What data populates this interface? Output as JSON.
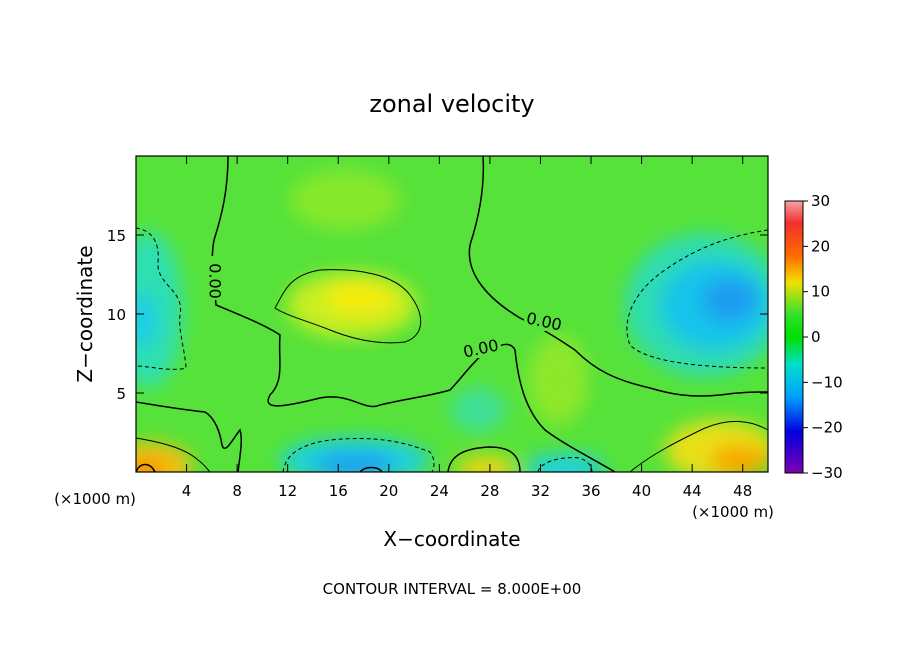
{
  "chart_data": {
    "type": "heatmap",
    "title": "zonal velocity",
    "xlabel": "X−coordinate",
    "ylabel": "Z−coordinate",
    "x_unit_left": "(×1000 m)",
    "x_unit_right": "(×1000 m)",
    "footer": "CONTOUR INTERVAL = 8.000E+00",
    "xlim": [
      0,
      50
    ],
    "ylim": [
      0,
      20
    ],
    "x_ticks": [
      4,
      8,
      12,
      16,
      20,
      24,
      28,
      32,
      36,
      40,
      44,
      48
    ],
    "y_ticks": [
      5,
      10,
      15
    ],
    "colorbar": {
      "range": [
        -30,
        30
      ],
      "ticks": [
        30,
        20,
        10,
        0,
        -10,
        -20,
        -30
      ],
      "tick_labels": [
        "30",
        "20",
        "10",
        "0",
        "−10",
        "−20",
        "−30"
      ]
    },
    "contour_labels": [
      "0.00",
      "0.00",
      "0.00"
    ],
    "features": [
      {
        "x": 18,
        "z": 10.8,
        "value": 11
      },
      {
        "x": 45,
        "z": 10.5,
        "value": -9
      },
      {
        "x": 1.5,
        "z": 10,
        "value": -7
      },
      {
        "x": 18,
        "z": 0.6,
        "value": -12
      },
      {
        "x": 33,
        "z": 0.5,
        "value": -9
      },
      {
        "x": 28,
        "z": 0.5,
        "value": 12
      },
      {
        "x": 1.5,
        "z": 0.8,
        "value": 16
      },
      {
        "x": 46,
        "z": 1.5,
        "value": 14
      },
      {
        "x": 31.5,
        "z": 6,
        "value": 7
      },
      {
        "x": 17,
        "z": 17,
        "value": 6
      }
    ]
  }
}
